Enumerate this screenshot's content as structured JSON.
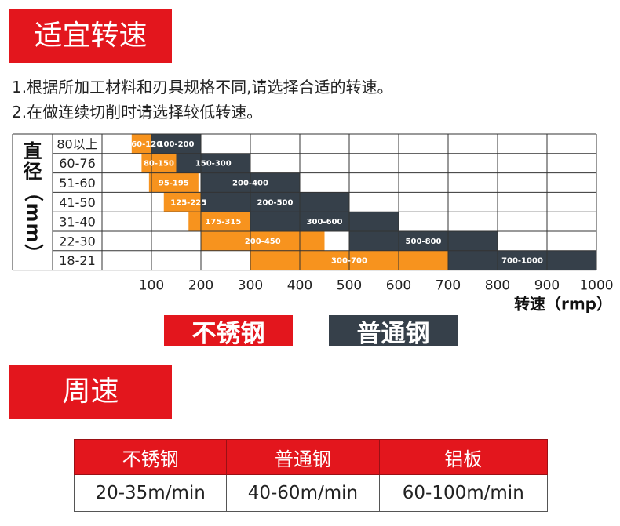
{
  "section1": {
    "title": "适宜转速",
    "notes": [
      "1.根据所加工材料和刃具规格不同,请选择合适的转速。",
      "2.在做连续切削时请选择较低转速。"
    ]
  },
  "chart_data": {
    "type": "bar",
    "orientation": "horizontal-range",
    "ylabel": "直径（mm）",
    "xlabel": "转速（rmp）",
    "x_ticks": [
      100,
      200,
      300,
      400,
      500,
      600,
      700,
      800,
      900,
      1000
    ],
    "xlim": [
      0,
      1000
    ],
    "grid": true,
    "categories": [
      "80以上",
      "60-76",
      "51-60",
      "41-50",
      "31-40",
      "22-30",
      "18-21"
    ],
    "series": [
      {
        "name": "不锈钢",
        "color": "#f7931e",
        "ranges": [
          [
            60,
            120
          ],
          [
            80,
            150
          ],
          [
            95,
            195
          ],
          [
            125,
            225
          ],
          [
            175,
            315
          ],
          [
            200,
            450
          ],
          [
            300,
            700
          ]
        ],
        "labels": [
          "60-120",
          "80-150",
          "95-195",
          "125-225",
          "175-315",
          "200-450",
          "300-700"
        ]
      },
      {
        "name": "普通钢",
        "color": "#36404a",
        "ranges": [
          [
            100,
            200
          ],
          [
            150,
            300
          ],
          [
            200,
            400
          ],
          [
            200,
            500
          ],
          [
            300,
            600
          ],
          [
            500,
            800
          ],
          [
            700,
            1000
          ]
        ],
        "labels": [
          "100-200",
          "150-300",
          "200-400",
          "200-500",
          "300-600",
          "500-800",
          "700-1000"
        ]
      }
    ],
    "legend": [
      "不锈钢",
      "普通钢"
    ]
  },
  "section2": {
    "title": "周速",
    "table": {
      "headers": [
        "不锈钢",
        "普通钢",
        "铝板"
      ],
      "values": [
        "20-35m/min",
        "40-60m/min",
        "60-100m/min"
      ]
    }
  }
}
